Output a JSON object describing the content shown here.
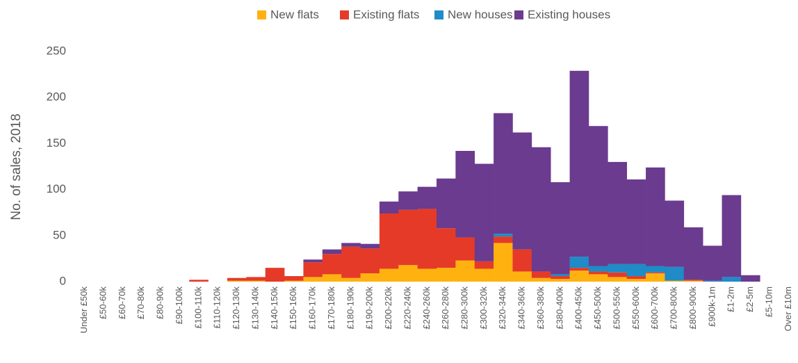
{
  "chart_data": {
    "type": "stacked_bar",
    "y_label": "No. of sales, 2018",
    "categories": [
      "Under £50k",
      "£50-60k",
      "£60-70k",
      "£70-80k",
      "£80-90k",
      "£90-100k",
      "£100-110k",
      "£110-120k",
      "£120-130k",
      "£130-140k",
      "£140-150k",
      "£150-160k",
      "£160-170k",
      "£170-180k",
      "£180-190k",
      "£190-200k",
      "£200-220k",
      "£220-240k",
      "£240-260k",
      "£260-280k",
      "£280-300k",
      "£300-320k",
      "£320-340k",
      "£340-360k",
      "£360-380k",
      "£380-400k",
      "£400-450k",
      "£450-500k",
      "£500-550k",
      "£550-600k",
      "£600-700k",
      "£700-800k",
      "£800-900k",
      "£900k-1m",
      "£1-2m",
      "£2-5m",
      "£5-10m",
      "Over £10m"
    ],
    "series": [
      {
        "name": "New flats",
        "color": "#ffb20f",
        "values": [
          0,
          0,
          0,
          0,
          0,
          0,
          0,
          0,
          1,
          1,
          0,
          1,
          5,
          8,
          4,
          9,
          14,
          18,
          14,
          15,
          23,
          14,
          42,
          11,
          4,
          3,
          12,
          8,
          5,
          3,
          9,
          1,
          1,
          0,
          0,
          0,
          0,
          0
        ]
      },
      {
        "name": "Existing flats",
        "color": "#e53a27",
        "values": [
          0,
          0,
          0,
          0,
          0,
          0,
          2,
          0,
          3,
          4,
          15,
          5,
          16,
          22,
          34,
          27,
          60,
          60,
          65,
          43,
          25,
          8,
          7,
          24,
          7,
          3,
          3,
          3,
          5,
          3,
          1,
          0,
          1,
          0,
          0,
          0,
          0,
          0
        ]
      },
      {
        "name": "New houses",
        "color": "#1f8bc7",
        "values": [
          0,
          0,
          0,
          0,
          0,
          0,
          0,
          0,
          0,
          0,
          0,
          0,
          0,
          0,
          0,
          0,
          0,
          0,
          0,
          0,
          0,
          0,
          3,
          0,
          0,
          2,
          12,
          6,
          9,
          13,
          7,
          15,
          0,
          1,
          5,
          0,
          0,
          0
        ]
      },
      {
        "name": "Existing houses",
        "color": "#6a3b8e",
        "values": [
          0,
          0,
          0,
          0,
          0,
          0,
          0,
          0,
          0,
          0,
          0,
          0,
          3,
          5,
          4,
          5,
          13,
          20,
          24,
          54,
          94,
          106,
          131,
          127,
          135,
          100,
          202,
          152,
          111,
          92,
          107,
          72,
          57,
          38,
          89,
          7,
          0,
          0
        ]
      }
    ],
    "ylim": [
      0,
      250
    ],
    "yticks": [
      0,
      50,
      100,
      150,
      200,
      250
    ],
    "legend": "top"
  }
}
